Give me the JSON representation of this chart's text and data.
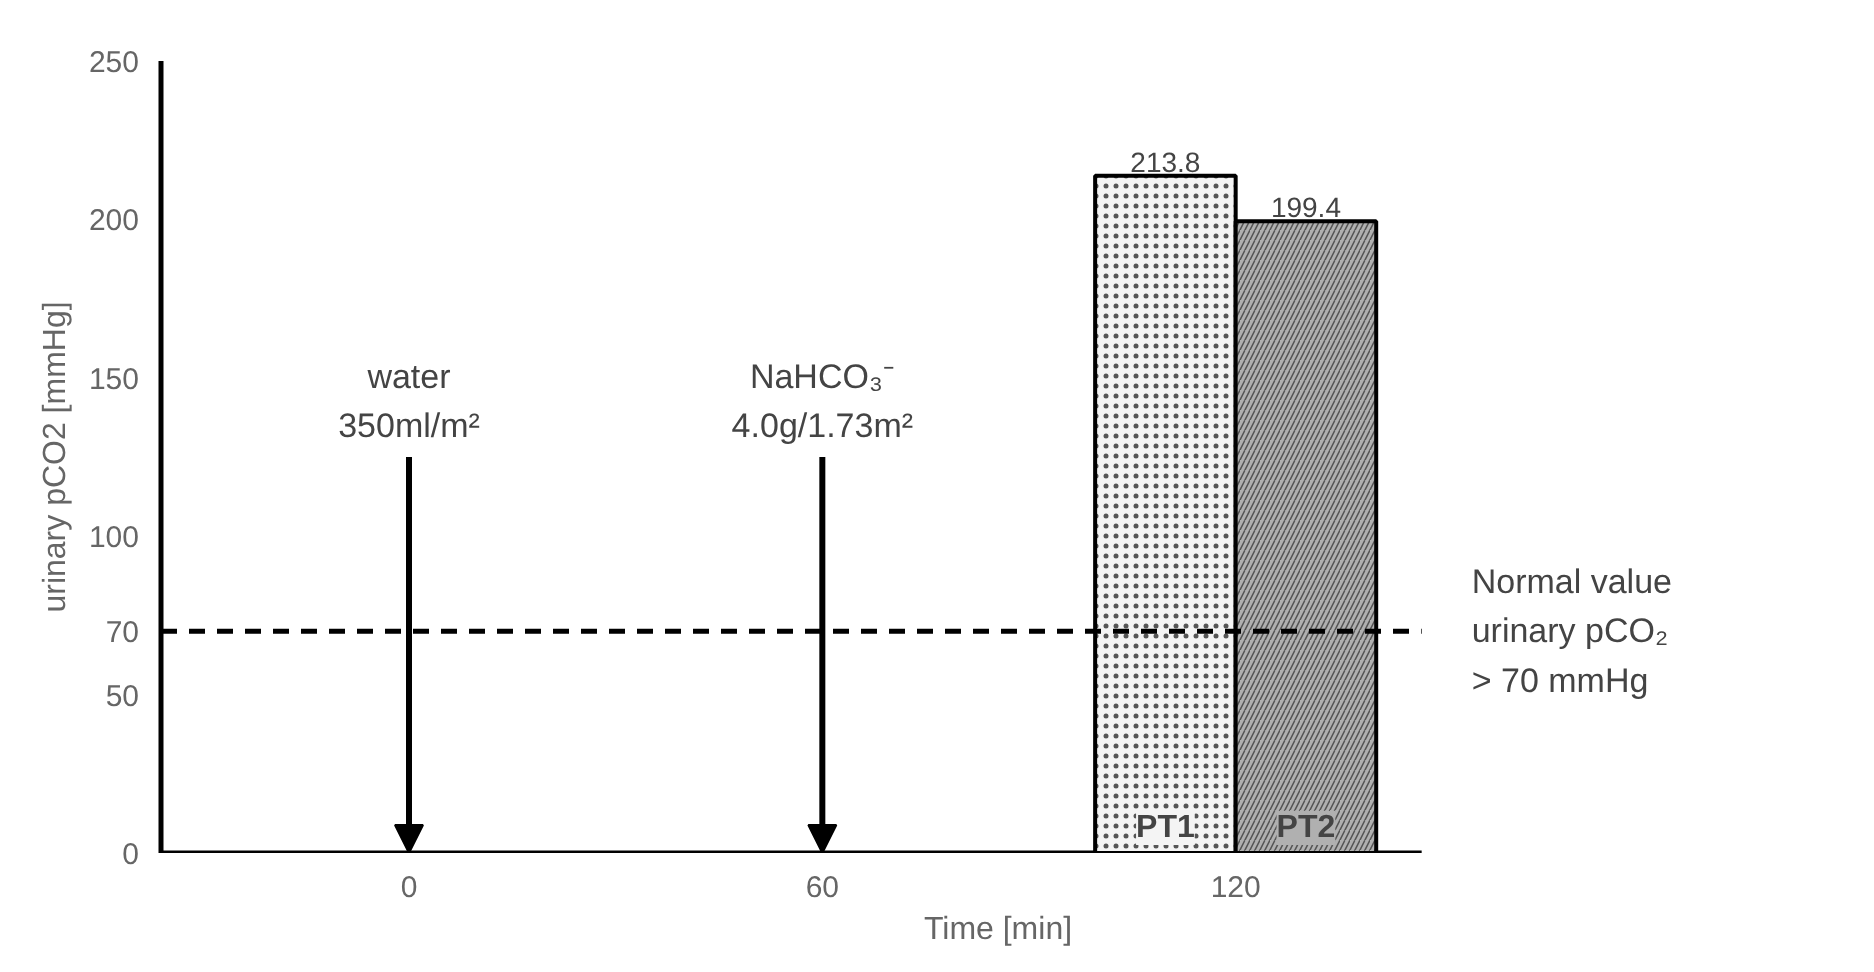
{
  "chart_data": {
    "type": "bar",
    "xlabel": "Time [min]",
    "ylabel": "urinary pCO2 [mmHg]",
    "categories": [
      "0",
      "60",
      "120"
    ],
    "series": [
      {
        "name": "PT1",
        "color": "#f4f4f4",
        "values": [
          null,
          null,
          213.8
        ]
      },
      {
        "name": "PT2",
        "color": "#b0b0b0",
        "values": [
          null,
          null,
          199.4
        ]
      }
    ],
    "ylim": [
      0,
      250
    ],
    "yticks": [
      0,
      50,
      70,
      100,
      150,
      200,
      250
    ],
    "data_labels": true,
    "grid": false,
    "ref_lines": [
      {
        "axis": "y",
        "value": 70,
        "label": "Normal value urinary pCO₂ > 70 mmHg",
        "color": "#000000",
        "line_style": "dashed"
      }
    ],
    "annotations": [
      "water 350ml/m²",
      "NaHCO₃⁻ 4.0g/1.73m²"
    ]
  }
}
